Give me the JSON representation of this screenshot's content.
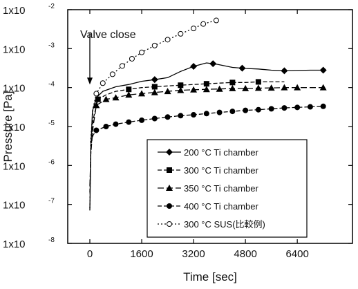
{
  "chart_data": {
    "type": "line",
    "xlabel": "Time [sec]",
    "ylabel": "Pressure [Pa]",
    "x_scale": "linear",
    "y_scale": "log",
    "xlim": [
      -500,
      7500
    ],
    "ylim": [
      1e-08,
      0.01
    ],
    "x_ticks": [
      0,
      1600,
      3200,
      4800,
      6400
    ],
    "x_tick_labels": [
      "0",
      "1600",
      "3200",
      "4800",
      "6400"
    ],
    "y_ticks": [
      {
        "mantissa": "1x10",
        "exponent": "-8",
        "value": 1e-08
      },
      {
        "mantissa": "1x10",
        "exponent": "-7",
        "value": 1e-07
      },
      {
        "mantissa": "1x10",
        "exponent": "-6",
        "value": 1e-06
      },
      {
        "mantissa": "1x10",
        "exponent": "-5",
        "value": 1e-05
      },
      {
        "mantissa": "1x10",
        "exponent": "-4",
        "value": 0.0001
      },
      {
        "mantissa": "1x10",
        "exponent": "-3",
        "value": 0.001
      },
      {
        "mantissa": "1x10",
        "exponent": "-2",
        "value": 0.01
      }
    ],
    "annotation": {
      "text": "Valve close",
      "x": 0,
      "y_from": 0.0025,
      "y_to": 0.00012
    },
    "legend_position": "bottom-right",
    "grid": false,
    "series": [
      {
        "name": "200 °C Ti chamber",
        "marker": "diamond-filled",
        "dash": "solid",
        "color": "#000000",
        "points": [
          [
            0,
            7e-08
          ],
          [
            30,
            3e-06
          ],
          [
            80,
            2.5e-05
          ],
          [
            200,
            5.5e-05
          ],
          [
            400,
            8e-05
          ],
          [
            800,
            0.000105
          ],
          [
            1200,
            0.00012
          ],
          [
            1600,
            0.000145
          ],
          [
            2000,
            0.00016
          ],
          [
            2400,
            0.00018
          ],
          [
            2800,
            0.00026
          ],
          [
            3200,
            0.00035
          ],
          [
            3600,
            0.00043
          ],
          [
            3900,
            0.0004
          ],
          [
            4400,
            0.00033
          ],
          [
            4800,
            0.00031
          ],
          [
            5200,
            0.0003
          ],
          [
            5600,
            0.00028
          ],
          [
            6000,
            0.00027
          ],
          [
            6400,
            0.000275
          ],
          [
            6800,
            0.00028
          ],
          [
            7200,
            0.00028
          ]
        ],
        "marker_x": [
          2000,
          3200,
          3800,
          4700,
          6000,
          7200
        ]
      },
      {
        "name": "300 °C Ti chamber",
        "marker": "square-filled",
        "dash": "dashed",
        "color": "#000000",
        "points": [
          [
            0,
            2e-07
          ],
          [
            30,
            2e-06
          ],
          [
            100,
            1.5e-05
          ],
          [
            250,
            5e-05
          ],
          [
            500,
            6.5e-05
          ],
          [
            800,
            8e-05
          ],
          [
            1200,
            9e-05
          ],
          [
            1600,
            0.0001
          ],
          [
            2000,
            0.000105
          ],
          [
            2400,
            0.00011
          ],
          [
            2800,
            0.000115
          ],
          [
            3200,
            0.00012
          ],
          [
            3600,
            0.000125
          ],
          [
            4000,
            0.00013
          ],
          [
            4400,
            0.000135
          ],
          [
            4800,
            0.000135
          ],
          [
            5200,
            0.00014
          ],
          [
            5600,
            0.00014
          ],
          [
            6000,
            0.00014
          ]
        ],
        "marker_x": [
          250,
          1200,
          2000,
          2800,
          3600,
          4400,
          5200
        ]
      },
      {
        "name": "350 °C Ti chamber",
        "marker": "triangle-filled",
        "dash": "longdash",
        "color": "#000000",
        "points": [
          [
            0,
            3e-07
          ],
          [
            30,
            2e-06
          ],
          [
            100,
            1e-05
          ],
          [
            200,
            3.5e-05
          ],
          [
            500,
            5e-05
          ],
          [
            800,
            5.5e-05
          ],
          [
            1200,
            6.5e-05
          ],
          [
            1600,
            7e-05
          ],
          [
            2000,
            7.5e-05
          ],
          [
            2400,
            8e-05
          ],
          [
            2800,
            8.5e-05
          ],
          [
            3200,
            8.8e-05
          ],
          [
            3600,
            9e-05
          ],
          [
            4000,
            9.2e-05
          ],
          [
            4400,
            9.5e-05
          ],
          [
            4800,
            9.5e-05
          ],
          [
            5200,
            9.7e-05
          ],
          [
            5600,
            9.8e-05
          ],
          [
            6000,
            0.0001
          ],
          [
            6400,
            0.0001
          ],
          [
            6800,
            0.0001
          ],
          [
            7200,
            0.0001
          ]
        ],
        "marker_x": [
          200,
          500,
          800,
          1200,
          1600,
          2000,
          2400,
          2800,
          3200,
          3600,
          4000,
          4400,
          4800,
          5200,
          5600,
          6000,
          6400,
          7200
        ]
      },
      {
        "name": "400 °C Ti chamber",
        "marker": "circle-filled",
        "dash": "dashed",
        "color": "#000000",
        "points": [
          [
            0,
            4e-06
          ],
          [
            30,
            4e-06
          ],
          [
            100,
            6e-06
          ],
          [
            200,
            8e-06
          ],
          [
            500,
            1e-05
          ],
          [
            800,
            1.15e-05
          ],
          [
            1200,
            1.3e-05
          ],
          [
            1600,
            1.45e-05
          ],
          [
            2000,
            1.6e-05
          ],
          [
            2400,
            1.75e-05
          ],
          [
            2800,
            1.9e-05
          ],
          [
            3200,
            2e-05
          ],
          [
            3600,
            2.15e-05
          ],
          [
            4000,
            2.3e-05
          ],
          [
            4400,
            2.45e-05
          ],
          [
            4800,
            2.6e-05
          ],
          [
            5200,
            2.7e-05
          ],
          [
            5600,
            2.85e-05
          ],
          [
            6000,
            3e-05
          ],
          [
            6400,
            3.1e-05
          ],
          [
            6800,
            3.2e-05
          ],
          [
            7200,
            3.3e-05
          ]
        ],
        "marker_x": [
          200,
          500,
          800,
          1200,
          1600,
          2000,
          2400,
          2800,
          3200,
          3600,
          4000,
          4400,
          4800,
          5200,
          5600,
          6000,
          6400,
          6800,
          7200
        ]
      },
      {
        "name": "300 °C SUS(比較例)",
        "marker": "circle-open",
        "dash": "dotted",
        "color": "#000000",
        "points": [
          [
            0,
            8e-08
          ],
          [
            30,
            5e-06
          ],
          [
            100,
            3e-05
          ],
          [
            200,
            7e-05
          ],
          [
            400,
            0.00013
          ],
          [
            700,
            0.00022
          ],
          [
            1000,
            0.00036
          ],
          [
            1300,
            0.00055
          ],
          [
            1600,
            0.0008
          ],
          [
            2000,
            0.0012
          ],
          [
            2400,
            0.0017
          ],
          [
            2800,
            0.0024
          ],
          [
            3200,
            0.0033
          ],
          [
            3500,
            0.0043
          ],
          [
            3900,
            0.0053
          ]
        ],
        "marker_x": [
          200,
          400,
          700,
          1000,
          1300,
          1600,
          2000,
          2400,
          2800,
          3200,
          3500,
          3900
        ]
      }
    ]
  }
}
